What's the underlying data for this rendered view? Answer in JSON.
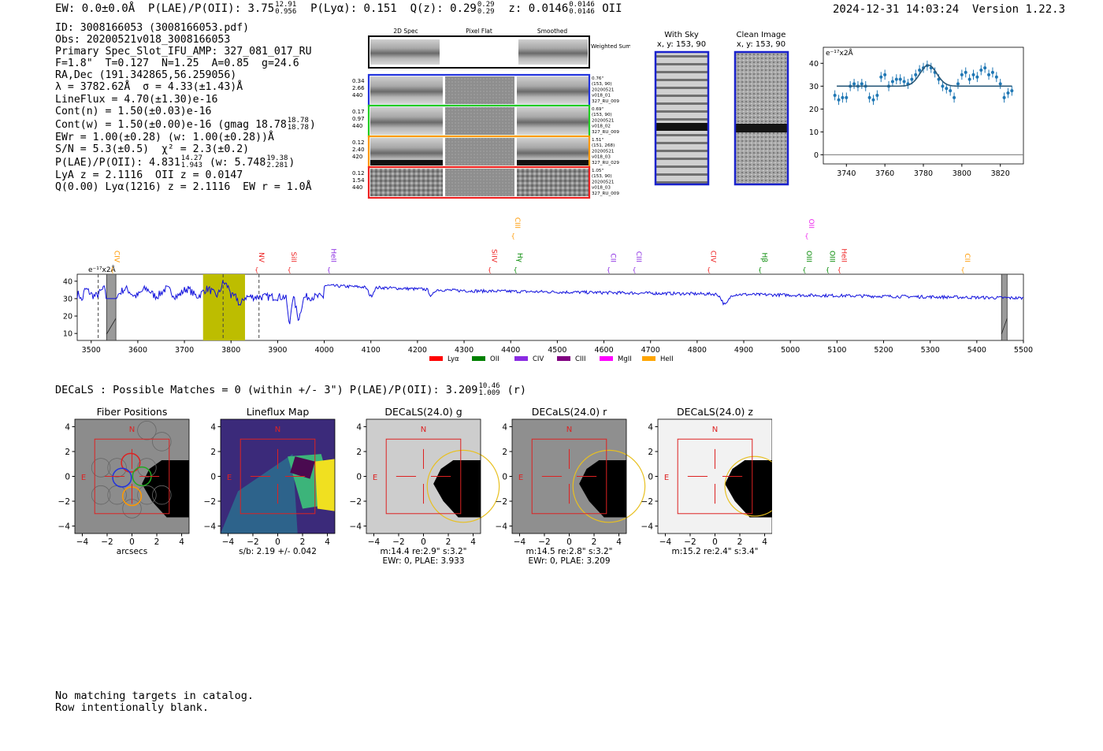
{
  "header": {
    "ew": "EW: 0.0±0.0Å",
    "plae_label": "P(LAE)/P(OII): 3.75",
    "plae_hi": "12.91",
    "plae_lo": "0.956",
    "plya": "P(Lyα): 0.151",
    "qz_label": "Q(z): 0.29",
    "qz_hi": "0.29",
    "qz_lo": "0.29",
    "z_label": "z: 0.0146",
    "z_hi": "0.0146",
    "z_lo": "0.0146",
    "z_line": "OII",
    "timestamp": "2024-12-31 14:03:24",
    "version": "Version 1.22.3"
  },
  "info": {
    "id": "ID: 3008166053 (3008166053.pdf)",
    "obs": "Obs: 20200521v018_3008166053",
    "primary": "Primary Spec_Slot_IFU_AMP: 327_081_017_RU",
    "fiber": "F=1.8\"  T=0.127  N=1.25  A=0.85  g=24.6",
    "radec": "RA,Dec (191.342865,56.259056)",
    "lambda": "λ = 3782.62Å  σ = 4.33(±1.43)Å",
    "lineflux": "LineFlux = 4.70(±1.30)e-16",
    "contn": "Cont(n) = 1.50(±0.03)e-16",
    "contw": "Cont(w) = 1.50(±0.00)e-16 (gmag 18.78",
    "contw_hi": "18.78",
    "contw_lo": "18.78",
    "contw_end": ")",
    "ewr": "EWr = 1.00(±0.28) (w: 1.00(±0.28))Å",
    "sn": "S/N = 5.3(±0.5)  χ² = 2.3(±0.2)",
    "plae": "P(LAE)/P(OII): 4.831",
    "plae_hi": "14.27",
    "plae_lo": "1.943",
    "plae_w": "(w: 5.748",
    "plae_w_hi": "19.38",
    "plae_w_lo": "2.281",
    "plae_w_end": ")",
    "lya": "LyA z = 2.1116  OII z = 0.0147",
    "q": "Q(0.00) Lyα(1216) z = 2.1116  EW r = 1.0Å"
  },
  "spec2d": {
    "columns": [
      "2D Spec",
      "Pixel Flat",
      "Smoothed"
    ],
    "weighted_label": "Weighted Sum",
    "rows": [
      {
        "left": [
          "0.34",
          "2.66",
          "440"
        ],
        "right": [
          "0.76\"",
          "(153, 90)",
          "20200521",
          "v018_01",
          "327_RU_009"
        ],
        "color": "#2233dd"
      },
      {
        "left": [
          "0.17",
          "0.97",
          "440"
        ],
        "right": [
          "0.69\"",
          "(153, 90)",
          "20200521",
          "v018_02",
          "327_RU_009"
        ],
        "color": "#22cc22"
      },
      {
        "left": [
          "0.12",
          "2.40",
          "420"
        ],
        "right": [
          "1.51\"",
          "(151, 268)",
          "20200521",
          "v018_03",
          "327_RU_029"
        ],
        "color": "#ff9900"
      },
      {
        "left": [
          "0.12",
          "1.54",
          "440"
        ],
        "right": [
          "1.05\"",
          "(153, 90)",
          "20200521",
          "v018_03",
          "327_RU_009"
        ],
        "color": "#ee2222"
      }
    ]
  },
  "sky": {
    "with_sky": "With Sky",
    "with_sky_xy": "x, y: 153, 90",
    "clean": "Clean Image",
    "clean_xy": "x, y: 153, 90"
  },
  "chart_data": [
    {
      "type": "scatter",
      "name": "line-fit-zoom",
      "ylabel": "e⁻¹⁷x2Å",
      "xlim": [
        3728,
        3832
      ],
      "ylim": [
        -4,
        47
      ],
      "xticks": [
        3740,
        3760,
        3780,
        3800,
        3820
      ],
      "yticks": [
        0,
        10,
        20,
        30,
        40
      ],
      "x": [
        3734,
        3736,
        3738,
        3740,
        3742,
        3744,
        3746,
        3748,
        3750,
        3752,
        3754,
        3756,
        3758,
        3760,
        3762,
        3764,
        3766,
        3768,
        3770,
        3772,
        3774,
        3776,
        3778,
        3780,
        3782,
        3784,
        3786,
        3788,
        3790,
        3792,
        3794,
        3796,
        3798,
        3800,
        3802,
        3804,
        3806,
        3808,
        3810,
        3812,
        3814,
        3816,
        3818,
        3820,
        3822,
        3824,
        3826
      ],
      "y": [
        26,
        24,
        25,
        25,
        30,
        31,
        30,
        31,
        30,
        25,
        24,
        26,
        34,
        35,
        30,
        32,
        33,
        33,
        32,
        31,
        33,
        35,
        37,
        38,
        39,
        38,
        36,
        33,
        30,
        29,
        28,
        25,
        31,
        35,
        36,
        33,
        35,
        34,
        37,
        38,
        35,
        36,
        34,
        31,
        25,
        27,
        28
      ],
      "fit": {
        "continuum": 30,
        "amplitude": 9.2,
        "center": 3782.6,
        "sigma": 4.33
      }
    },
    {
      "type": "line",
      "name": "full-spectrum",
      "ylabel": "e⁻¹⁷x2Å",
      "xlim": [
        3470,
        5500
      ],
      "ylim": [
        6,
        44
      ],
      "xticks": [
        3500,
        3600,
        3700,
        3800,
        3900,
        4000,
        4100,
        4200,
        4300,
        4400,
        4500,
        4600,
        4700,
        4800,
        4900,
        5000,
        5100,
        5200,
        5300,
        5400,
        5500
      ],
      "yticks": [
        10,
        20,
        30,
        40
      ],
      "highlight": [
        3740,
        3830
      ],
      "masked": [
        [
          3533,
          3553
        ],
        [
          5453,
          5465
        ]
      ],
      "dashed": [
        3515,
        3783,
        3860
      ],
      "lines": [
        {
          "label": "CIV",
          "x": 3545,
          "color": "#ff9900",
          "y_level": 1
        },
        {
          "label": "NV",
          "x": 3855,
          "color": "#ee2222",
          "y_level": 1
        },
        {
          "label": "SiII",
          "x": 3925,
          "color": "#ee2222",
          "y_level": 1
        },
        {
          "label": "HeII",
          "x": 4010,
          "color": "#8a2be2",
          "y_level": 1
        },
        {
          "label": "SiIV",
          "x": 4355,
          "color": "#ee2222",
          "y_level": 1
        },
        {
          "label": "CIII",
          "x": 4405,
          "color": "#ff9900",
          "y_level": 2
        },
        {
          "label": "Hγ",
          "x": 4410,
          "color": "#008800",
          "y_level": 1
        },
        {
          "label": "CII",
          "x": 4610,
          "color": "#8a2be2",
          "y_level": 1
        },
        {
          "label": "CIII",
          "x": 4665,
          "color": "#8a2be2",
          "y_level": 1
        },
        {
          "label": "CIV",
          "x": 4825,
          "color": "#ee2222",
          "y_level": 1
        },
        {
          "label": "Hβ",
          "x": 4935,
          "color": "#008800",
          "y_level": 1
        },
        {
          "label": "OIII",
          "x": 5030,
          "color": "#008800",
          "y_level": 1
        },
        {
          "label": "OII",
          "x": 5035,
          "color": "#ee22ee",
          "y_level": 2
        },
        {
          "label": "OIII",
          "x": 5080,
          "color": "#008800",
          "y_level": 1
        },
        {
          "label": "HeII",
          "x": 5105,
          "color": "#ee2222",
          "y_level": 1
        },
        {
          "label": "CII",
          "x": 5370,
          "color": "#ff9900",
          "y_level": 1
        }
      ],
      "legend": [
        {
          "label": "Lyα",
          "color": "#ff0000"
        },
        {
          "label": "OII",
          "color": "#008000"
        },
        {
          "label": "CIV",
          "color": "#8a2be2"
        },
        {
          "label": "CIII",
          "color": "#800080"
        },
        {
          "label": "MgII",
          "color": "#ff00ff"
        },
        {
          "label": "HeII",
          "color": "#ffa500"
        }
      ]
    }
  ],
  "decals": {
    "line_label": "DECaLS : Possible Matches = 0 (within +/- 3\")  P(LAE)/P(OII): 3.209",
    "line_hi": "10.46",
    "line_lo": "1.009",
    "line_band": "(r)",
    "ticks": [
      "−4",
      "−2",
      "0",
      "2",
      "4"
    ],
    "compass_n": "N",
    "compass_e": "E",
    "panels": [
      {
        "title": "Fiber Positions",
        "cap1": "arcsecs",
        "cap2": ""
      },
      {
        "title": "Lineflux Map",
        "cap1": "s/b: 2.19 +/- 0.042",
        "cap2": ""
      },
      {
        "title": "DECaLS(24.0) g",
        "cap1": "m:14.4  re:2.9\"  s:3.2\"",
        "cap2": "EWr: 0, PLAE: 3.933"
      },
      {
        "title": "DECaLS(24.0) r",
        "cap1": "m:14.5  re:2.8\"  s:3.2\"",
        "cap2": "EWr: 0, PLAE: 3.209"
      },
      {
        "title": "DECaLS(24.0) z",
        "cap1": "m:15.2  re:2.4\"  s:3.4\"",
        "cap2": ""
      }
    ]
  },
  "footer": {
    "line1": "No matching targets in catalog.",
    "line2": "Row intentionally blank."
  }
}
